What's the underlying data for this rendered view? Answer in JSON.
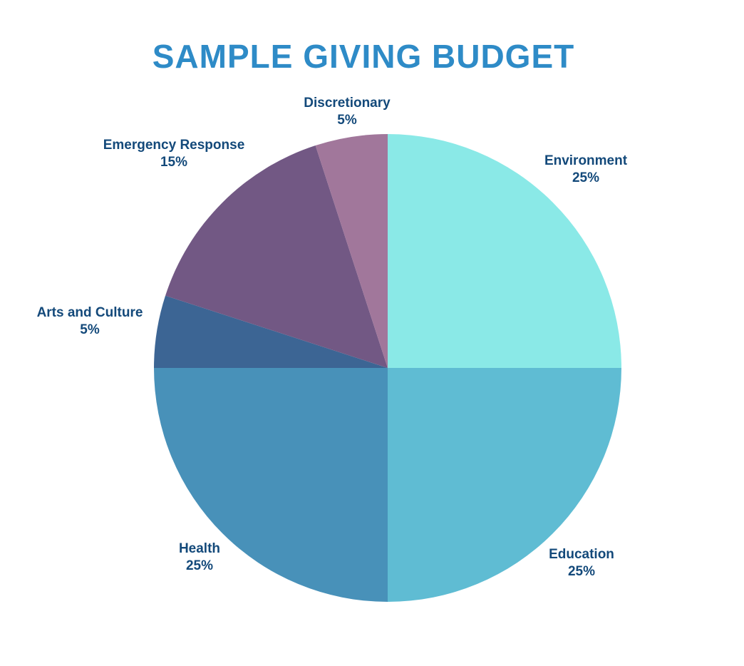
{
  "chart_data": {
    "type": "pie",
    "title": "SAMPLE GIVING BUDGET",
    "slices": [
      {
        "label": "Environment",
        "value": 25,
        "value_label": "25%",
        "color": "#8AE9E7"
      },
      {
        "label": "Education",
        "value": 25,
        "value_label": "25%",
        "color": "#5FBCD3"
      },
      {
        "label": "Health",
        "value": 25,
        "value_label": "25%",
        "color": "#4891B9"
      },
      {
        "label": "Arts and Culture",
        "value": 5,
        "value_label": "5%",
        "color": "#3C6594"
      },
      {
        "label": "Emergency Response",
        "value": 15,
        "value_label": "15%",
        "color": "#725884"
      },
      {
        "label": "Discretionary",
        "value": 5,
        "value_label": "5%",
        "color": "#A1779B"
      }
    ],
    "start": "12 o'clock",
    "direction": "clockwise",
    "legend": "none",
    "labels": "outside"
  },
  "colors": {
    "title": "#2E8BC7",
    "label_text": "#13497A",
    "background": "#FFFFFF"
  }
}
